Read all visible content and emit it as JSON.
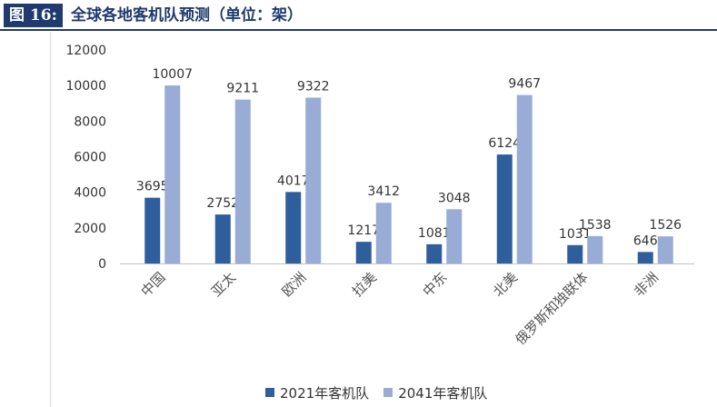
{
  "header": {
    "figure_label": "图 16:",
    "title": "全球各地客机队预测（单位：架）"
  },
  "colors": {
    "header_bg": "#1f3a6e",
    "series_2021": "#2e5e9c",
    "series_2041": "#99acd6"
  },
  "chart_data": {
    "type": "bar",
    "title": "",
    "xlabel": "",
    "ylabel": "",
    "categories": [
      "中国",
      "亚太",
      "欧洲",
      "拉美",
      "中东",
      "北美",
      "俄罗斯和独联体",
      "非洲"
    ],
    "series": [
      {
        "name": "2021年客机队",
        "values": [
          3695,
          2752,
          4017,
          1217,
          1081,
          6124,
          1031,
          646
        ]
      },
      {
        "name": "2041年客机队",
        "values": [
          10007,
          9211,
          9322,
          3412,
          3048,
          9467,
          1538,
          1526
        ]
      }
    ],
    "ylim": [
      0,
      12000
    ],
    "yticks": [
      0,
      2000,
      4000,
      6000,
      8000,
      10000,
      12000
    ],
    "grid": false,
    "legend_position": "bottom"
  }
}
